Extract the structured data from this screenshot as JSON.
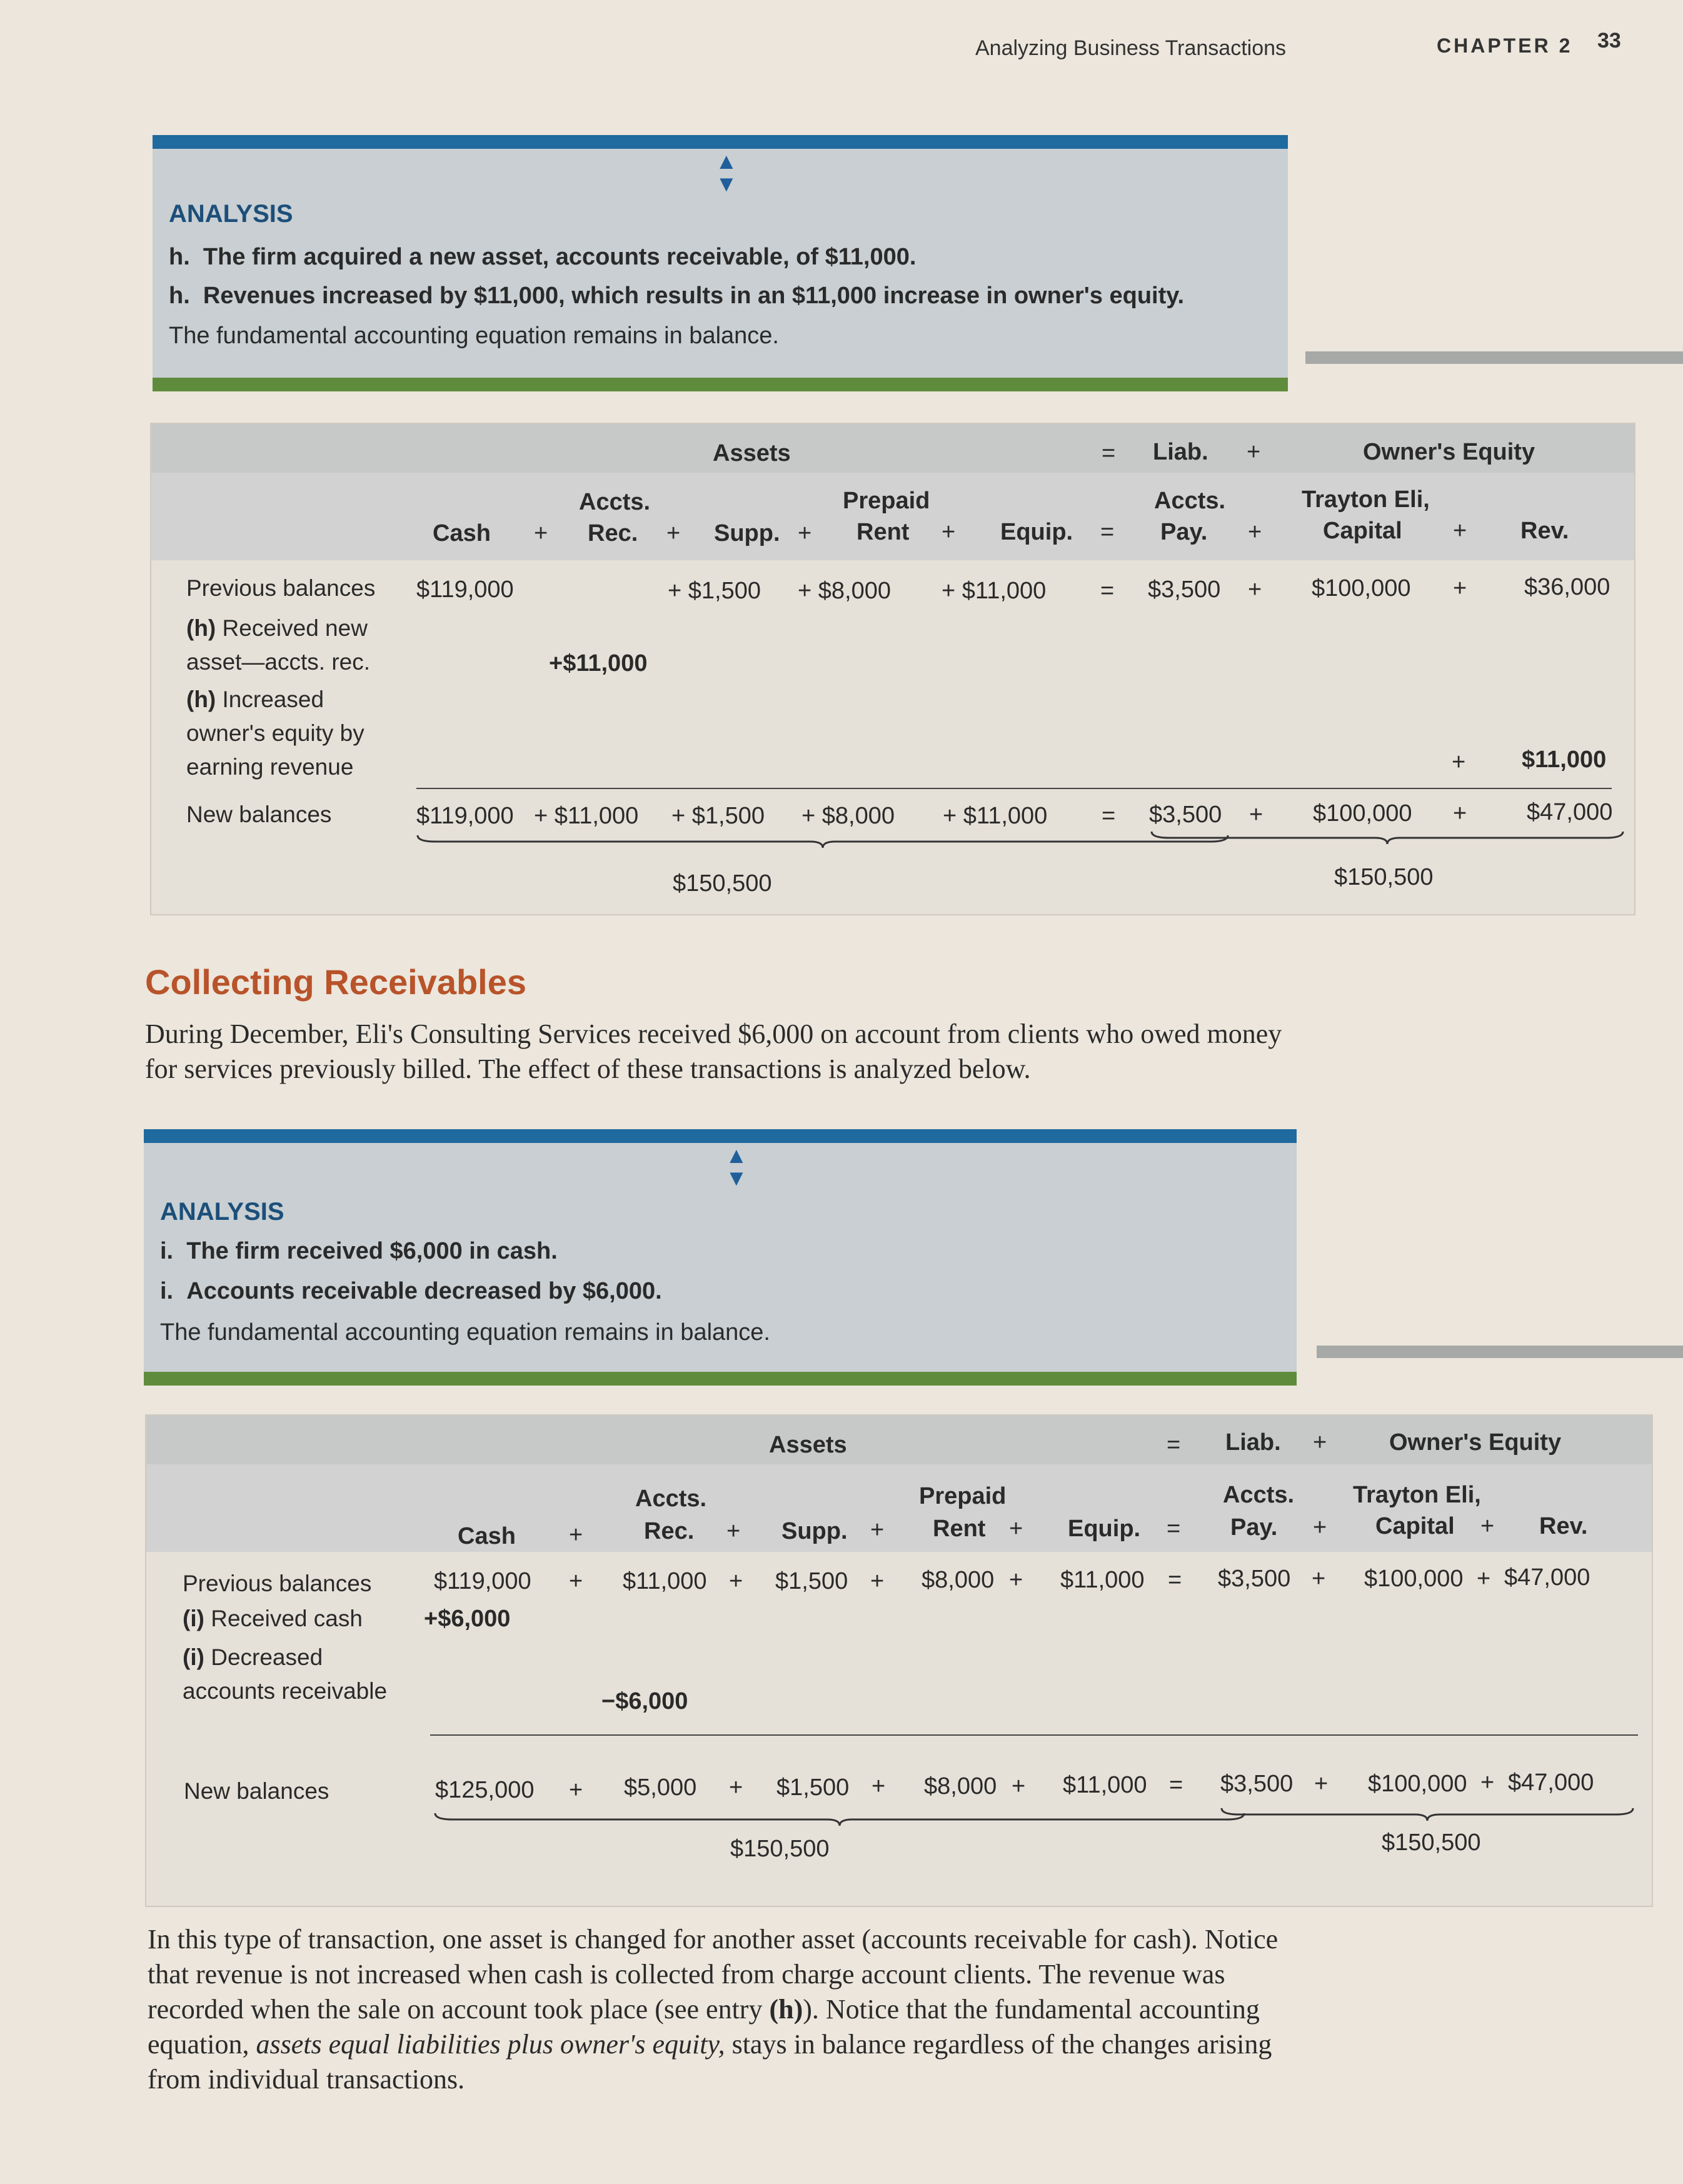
{
  "header": {
    "running_head": "Analyzing Business Transactions",
    "chapter": "CHAPTER 2",
    "page_number": "33"
  },
  "analysis_h": {
    "arrow_up": "▲",
    "arrow_down": "▼",
    "title": "ANALYSIS",
    "line1_letter": "h.",
    "line1_text": "The firm acquired a new asset, accounts receivable, of $11,000.",
    "line2_letter": "h.",
    "line2_text": "Revenues increased by $11,000, which results in an $11,000 increase in owner's equity.",
    "line3_text": "The fundamental accounting equation remains in balance."
  },
  "table_h": {
    "group_assets": "Assets",
    "eq": "=",
    "group_liab": "Liab.",
    "plus": "+",
    "group_oe": "Owner's Equity",
    "col_cash": "Cash",
    "col_ar_1": "Accts.",
    "col_ar_2": "Rec.",
    "col_supp": "Supp.",
    "col_rent_1": "Prepaid",
    "col_rent_2": "Rent",
    "col_equip": "Equip.",
    "col_ap_1": "Accts.",
    "col_ap_2": "Pay.",
    "col_cap_1": "Trayton Eli,",
    "col_cap_2": "Capital",
    "col_rev": "Rev.",
    "row_prev": "Previous balances",
    "prev_cash": "$119,000",
    "prev_supp": "+ $1,500",
    "prev_rent": "+ $8,000",
    "prev_equip": "+ $11,000",
    "prev_ap": "$3,500",
    "prev_cap": "$100,000",
    "prev_rev": "$36,000",
    "row_h1_letter": "(h)",
    "row_h1_text1": " Received new",
    "row_h1_text2": "asset—accts. rec.",
    "h1_ar": "+$11,000",
    "row_h2_letter": "(h)",
    "row_h2_text1": " Increased",
    "row_h2_text2": "owner's equity by",
    "row_h2_text3": "earning revenue",
    "h2_rev": "$11,000",
    "row_new": "New balances",
    "new_cash": "$119,000",
    "new_ar": "+ $11,000",
    "new_supp": "+ $1,500",
    "new_rent": "+ $8,000",
    "new_equip": "+ $11,000",
    "new_ap": "$3,500",
    "new_cap": "$100,000",
    "new_rev": "$47,000",
    "total_assets": "$150,500",
    "total_le": "$150,500"
  },
  "section": {
    "title": "Collecting Receivables",
    "para": "During December, Eli's Consulting Services received $6,000 on account from clients who owed money for services previously billed. The effect of these transactions is analyzed below."
  },
  "analysis_i": {
    "arrow_up": "▲",
    "arrow_down": "▼",
    "title": "ANALYSIS",
    "line1_letter": "i.",
    "line1_text": "The firm received $6,000 in cash.",
    "line2_letter": "i.",
    "line2_text": "Accounts receivable decreased by $6,000.",
    "line3_text": "The fundamental accounting equation remains in balance."
  },
  "table_i": {
    "group_assets": "Assets",
    "eq": "=",
    "group_liab": "Liab.",
    "plus": "+",
    "group_oe": "Owner's Equity",
    "col_cash": "Cash",
    "col_ar_1": "Accts.",
    "col_ar_2": "Rec.",
    "col_supp": "Supp.",
    "col_rent_1": "Prepaid",
    "col_rent_2": "Rent",
    "col_equip": "Equip.",
    "col_ap_1": "Accts.",
    "col_ap_2": "Pay.",
    "col_cap_1": "Trayton Eli,",
    "col_cap_2": "Capital",
    "col_rev": "Rev.",
    "row_prev": "Previous balances",
    "prev_cash": "$119,000",
    "prev_ar": "$11,000",
    "prev_supp": "$1,500",
    "prev_rent": "$8,000",
    "prev_equip": "$11,000",
    "prev_ap": "$3,500",
    "prev_cap": "$100,000",
    "prev_rev": "$47,000",
    "row_i1_letter": "(i)",
    "row_i1_text": " Received cash",
    "i1_cash": "+$6,000",
    "row_i2_letter": "(i)",
    "row_i2_text1": " Decreased",
    "row_i2_text2": "accounts receivable",
    "i2_ar": "−$6,000",
    "row_new": "New balances",
    "new_cash": "$125,000",
    "new_ar": "$5,000",
    "new_supp": "$1,500",
    "new_rent": "$8,000",
    "new_equip": "$11,000",
    "new_ap": "$3,500",
    "new_cap": "$100,000",
    "new_rev": "$47,000",
    "total_assets": "$150,500",
    "total_le": "$150,500"
  },
  "closing": {
    "p1": "In this type of transaction, one asset is changed for another asset (accounts receivable for cash). Notice that revenue is not increased when cash is collected from charge account clients. The revenue was recorded when the sale on account took place (see entry ",
    "p_ref": "(h)",
    "p2": "). Notice that the fundamental accounting equation, ",
    "p_italic": "assets equal liabilities plus owner's equity,",
    "p3": " stays in balance regardless of the changes arising from individual transactions."
  }
}
